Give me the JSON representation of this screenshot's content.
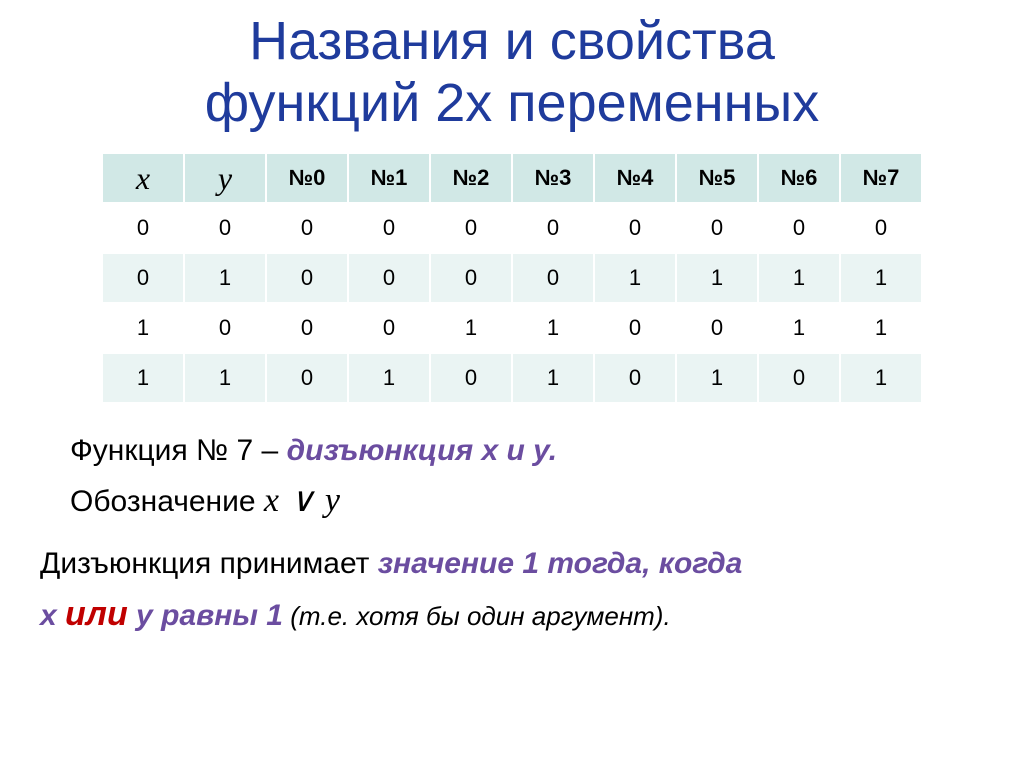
{
  "title_line1": "Названия и свойства",
  "title_line2": "функций 2х переменных",
  "table": {
    "var_x": "x",
    "var_y": "y",
    "headers": [
      "№0",
      "№1",
      "№2",
      "№3",
      "№4",
      "№5",
      "№6",
      "№7"
    ],
    "rows": [
      [
        "0",
        "0",
        "0",
        "0",
        "0",
        "0",
        "0",
        "0",
        "0",
        "0"
      ],
      [
        "0",
        "1",
        "0",
        "0",
        "0",
        "0",
        "1",
        "1",
        "1",
        "1"
      ],
      [
        "1",
        "0",
        "0",
        "0",
        "1",
        "1",
        "0",
        "0",
        "1",
        "1"
      ],
      [
        "1",
        "1",
        "0",
        "1",
        "0",
        "1",
        "0",
        "1",
        "0",
        "1"
      ]
    ],
    "header_bg": "#d1e8e6",
    "row_even_bg": "#eaf4f3",
    "row_odd_bg": "#ffffff",
    "border_color": "#ffffff",
    "cell_fontsize": 22,
    "var_fontsize": 32
  },
  "line1_prefix": "Функция № 7 – ",
  "line1_em": "дизъюнкция x и y.",
  "line2_prefix": "Обозначение  ",
  "line2_notation": "x ∨ y",
  "line3_prefix": "Дизъюнкция принимает ",
  "line3_em": "значение 1 тогда, когда",
  "line4_x": "x ",
  "line4_or": "или",
  "line4_y": " y равны 1",
  "line4_tail": "  (т.е. хотя бы один аргумент).",
  "colors": {
    "title": "#1f3b9c",
    "purple": "#6b4da0",
    "red": "#c00000",
    "black": "#000000",
    "bg": "#ffffff"
  },
  "fonts": {
    "title_size": 54,
    "body_size": 30,
    "small_size": 26,
    "notation_size": 34
  }
}
